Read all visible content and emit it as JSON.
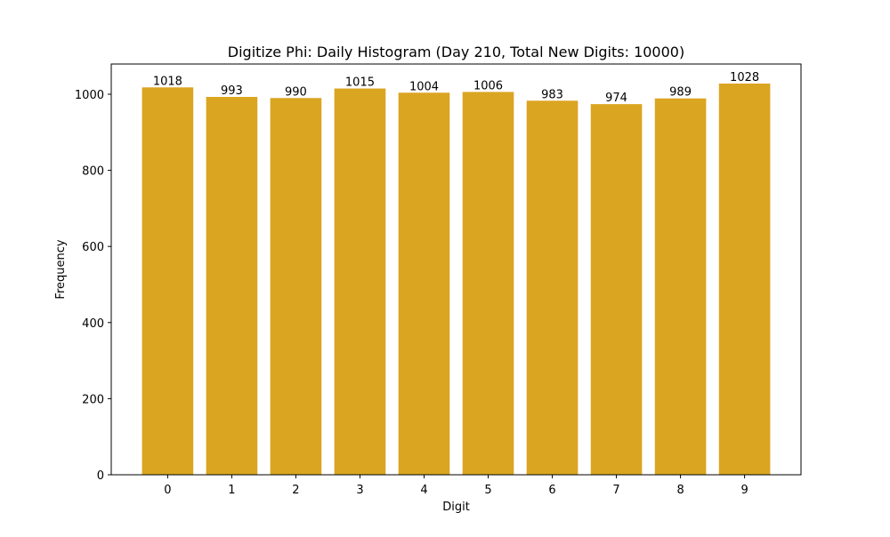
{
  "chart_data": {
    "type": "bar",
    "title": "Digitize Phi: Daily Histogram (Day 210, Total New Digits: 10000)",
    "xlabel": "Digit",
    "ylabel": "Frequency",
    "categories": [
      "0",
      "1",
      "2",
      "3",
      "4",
      "5",
      "6",
      "7",
      "8",
      "9"
    ],
    "values": [
      1018,
      993,
      990,
      1015,
      1004,
      1006,
      983,
      974,
      989,
      1028
    ],
    "ylim": [
      0,
      1079.4
    ],
    "yticks": [
      0,
      200,
      400,
      600,
      800,
      1000
    ],
    "bar_color": "#DAA520",
    "grid": false
  }
}
